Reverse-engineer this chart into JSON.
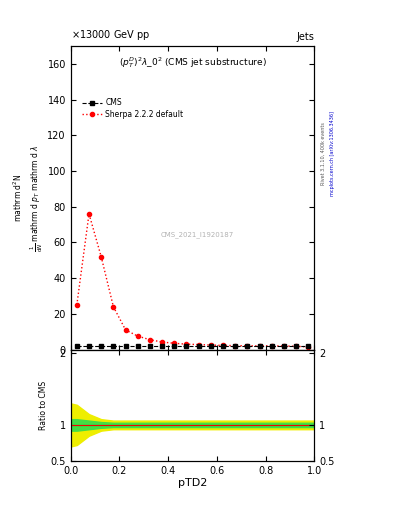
{
  "title_left": "13000 GeV pp",
  "title_right": "Jets",
  "plot_title": "$(p_T^D)^2\\lambda\\_0^2$ (CMS jet substructure)",
  "watermark": "CMS_2021_I1920187",
  "ylabel_ratio": "Ratio to CMS",
  "xlabel": "pTD2",
  "right_label_top": "Rivet 3.1.10, 400k events",
  "right_label_bot": "mcplots.cern.ch [arXiv:1306.3436]",
  "ylim_main": [
    0,
    170
  ],
  "ylim_ratio": [
    0.5,
    2.05
  ],
  "xlim": [
    0.0,
    1.0
  ],
  "cms_x": [
    0.025,
    0.075,
    0.125,
    0.175,
    0.225,
    0.275,
    0.325,
    0.375,
    0.425,
    0.475,
    0.525,
    0.575,
    0.625,
    0.675,
    0.725,
    0.775,
    0.825,
    0.875,
    0.925,
    0.975
  ],
  "cms_y": [
    2.0,
    2.0,
    2.0,
    2.0,
    2.0,
    2.0,
    2.0,
    2.0,
    2.0,
    2.0,
    2.0,
    2.0,
    2.0,
    2.0,
    2.0,
    2.0,
    2.0,
    2.0,
    2.0,
    2.0
  ],
  "sherpa_x": [
    0.025,
    0.075,
    0.125,
    0.175,
    0.225,
    0.275,
    0.325,
    0.375,
    0.425,
    0.475,
    0.525,
    0.575,
    0.625,
    0.675,
    0.725,
    0.775,
    0.825,
    0.875,
    0.925,
    0.975
  ],
  "sherpa_y": [
    25.0,
    76.0,
    52.0,
    24.0,
    11.0,
    7.5,
    5.5,
    4.2,
    3.5,
    3.0,
    2.8,
    2.5,
    2.3,
    2.2,
    2.1,
    2.0,
    2.0,
    2.0,
    1.8,
    1.5
  ],
  "ratio_x": [
    0.0,
    0.025,
    0.075,
    0.125,
    0.175,
    0.225,
    0.275,
    0.325,
    0.375,
    0.425,
    0.475,
    0.525,
    0.575,
    0.625,
    0.675,
    0.725,
    0.775,
    0.825,
    0.875,
    0.925,
    0.975,
    1.0
  ],
  "ratio_sherpa_y": [
    1.0,
    1.0,
    1.0,
    1.0,
    1.0,
    1.0,
    1.0,
    1.0,
    1.0,
    1.0,
    1.0,
    1.0,
    1.0,
    1.0,
    1.0,
    1.0,
    1.0,
    1.0,
    1.0,
    1.0,
    1.0,
    1.0
  ],
  "ratio_green_upper": [
    1.08,
    1.08,
    1.06,
    1.04,
    1.03,
    1.03,
    1.03,
    1.03,
    1.03,
    1.03,
    1.03,
    1.03,
    1.03,
    1.03,
    1.03,
    1.03,
    1.03,
    1.03,
    1.03,
    1.03,
    1.03,
    1.03
  ],
  "ratio_green_lower": [
    0.92,
    0.92,
    0.94,
    0.96,
    0.97,
    0.97,
    0.97,
    0.97,
    0.97,
    0.97,
    0.97,
    0.97,
    0.97,
    0.97,
    0.97,
    0.97,
    0.97,
    0.97,
    0.97,
    0.97,
    0.97,
    0.97
  ],
  "ratio_yellow_upper": [
    1.3,
    1.28,
    1.15,
    1.08,
    1.06,
    1.06,
    1.06,
    1.06,
    1.06,
    1.06,
    1.06,
    1.06,
    1.06,
    1.06,
    1.06,
    1.06,
    1.06,
    1.06,
    1.06,
    1.06,
    1.06,
    1.06
  ],
  "ratio_yellow_lower": [
    0.7,
    0.72,
    0.85,
    0.92,
    0.94,
    0.94,
    0.94,
    0.94,
    0.94,
    0.94,
    0.94,
    0.94,
    0.94,
    0.94,
    0.94,
    0.94,
    0.94,
    0.94,
    0.94,
    0.94,
    0.94,
    0.94
  ],
  "cms_color": "black",
  "sherpa_color": "red",
  "green_band_color": "#44dd44",
  "yellow_band_color": "#eeee00",
  "background_color": "white",
  "cms_marker": "s",
  "sherpa_marker": "o",
  "cms_markersize": 3,
  "sherpa_markersize": 3,
  "legend_cms": "CMS",
  "legend_sherpa": "Sherpa 2.2.2 default",
  "left_ylabel_lines": [
    "mathrm d$^2$N",
    "mathrm d $p_T$ mathrm d lambda",
    "$\\frac{1}{\\mathrm{d}N}$"
  ]
}
